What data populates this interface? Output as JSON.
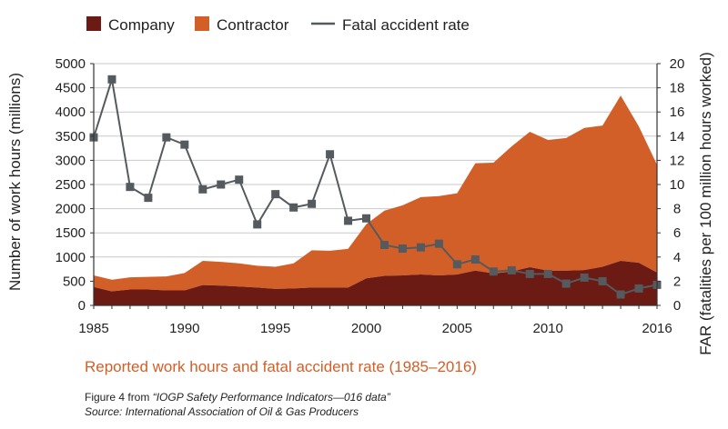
{
  "chart_data": {
    "type": "area",
    "title": "Reported work hours and fatal accident rate (1985–2016)",
    "xlabel": "",
    "ylabel": "Number of work hours (millions)",
    "y2label": "FAR (fatalities per 100 million  hours worked)",
    "ylim": [
      0,
      5000
    ],
    "y2lim": [
      0,
      20
    ],
    "x_ticks": [
      "1985",
      "1990",
      "1995",
      "2000",
      "2005",
      "2010",
      "2016"
    ],
    "y_ticks": [
      "0",
      "500",
      "1000",
      "1500",
      "2000",
      "2500",
      "3000",
      "3500",
      "4000",
      "4500",
      "5000"
    ],
    "y2_ticks": [
      "0",
      "2",
      "4",
      "6",
      "8",
      "10",
      "12",
      "14",
      "16",
      "18",
      "20"
    ],
    "x": [
      1985,
      1986,
      1987,
      1988,
      1989,
      1990,
      1991,
      1992,
      1993,
      1994,
      1995,
      1996,
      1997,
      1998,
      1999,
      2000,
      2001,
      2002,
      2003,
      2004,
      2005,
      2006,
      2007,
      2008,
      2009,
      2010,
      2011,
      2012,
      2013,
      2014,
      2015,
      2016
    ],
    "series": [
      {
        "name": "Company",
        "kind": "area",
        "color": "#6b1a14",
        "values": [
          380,
          290,
          330,
          330,
          310,
          310,
          420,
          410,
          390,
          370,
          340,
          350,
          370,
          370,
          370,
          560,
          610,
          620,
          640,
          620,
          640,
          720,
          660,
          700,
          790,
          720,
          720,
          730,
          800,
          920,
          880,
          680
        ]
      },
      {
        "name": "Contractor",
        "kind": "area",
        "color": "#d35f28",
        "values": [
          240,
          240,
          250,
          260,
          290,
          360,
          500,
          490,
          480,
          450,
          460,
          520,
          770,
          760,
          800,
          1120,
          1350,
          1450,
          1600,
          1640,
          1680,
          2220,
          2290,
          2590,
          2800,
          2700,
          2740,
          2940,
          2920,
          3420,
          2820,
          2230
        ]
      },
      {
        "name": "Fatal accident rate",
        "kind": "line",
        "axis": "right",
        "color": "#555a5e",
        "values": [
          13.9,
          18.7,
          9.8,
          8.9,
          13.9,
          13.3,
          9.6,
          10.0,
          10.4,
          6.7,
          9.2,
          8.1,
          8.4,
          12.5,
          7.0,
          7.2,
          5.0,
          4.7,
          4.8,
          5.1,
          3.4,
          3.8,
          2.8,
          2.9,
          2.6,
          2.6,
          1.8,
          2.3,
          2.0,
          0.9,
          1.4,
          1.7
        ]
      }
    ],
    "legend": [
      "Company",
      "Contractor",
      "Fatal accident rate"
    ],
    "legend_position": "top-left",
    "grid": true
  },
  "subtitle": "Reported work hours and fatal accident rate (1985–2016)",
  "caption": {
    "line1_prefix": "Figure 4 from ",
    "line1_title": "“IOGP Safety Performance Indicators—016 data”",
    "line2": "Source: International Association of Oil & Gas Producers"
  }
}
